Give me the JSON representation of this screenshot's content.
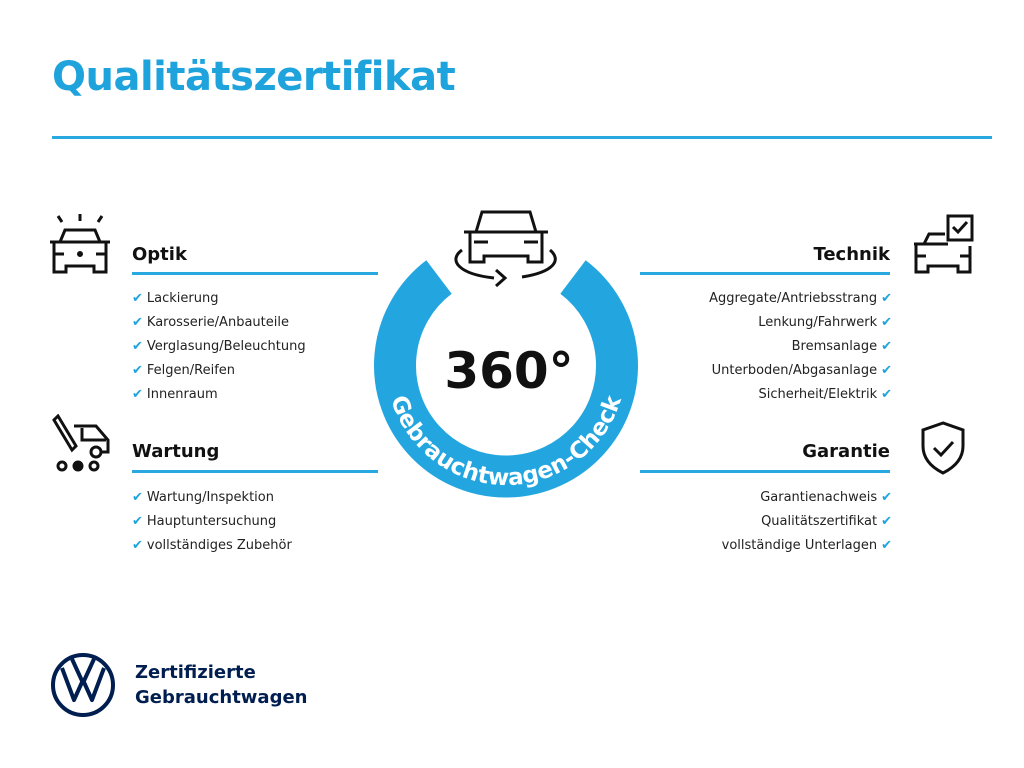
{
  "title": "Qualitätszertifikat",
  "colors": {
    "accent": "#1ea3dc",
    "navy": "#001e50"
  },
  "center": {
    "number": "360°",
    "ring_text": "Gebrauchtwagen-Check",
    "icon": "car-rotate-icon"
  },
  "sections": {
    "optik": {
      "heading": "Optik",
      "icon": "car-lights-icon",
      "items": [
        "Lackierung",
        "Karosserie/Anbauteile",
        "Verglasung/Beleuchtung",
        "Felgen/Reifen",
        "Innenraum"
      ]
    },
    "wartung": {
      "heading": "Wartung",
      "icon": "service-van-icon",
      "items": [
        "Wartung/Inspektion",
        "Hauptuntersuchung",
        "vollständiges Zubehör"
      ]
    },
    "technik": {
      "heading": "Technik",
      "icon": "car-checklist-icon",
      "items": [
        "Aggregate/Antriebsstrang",
        "Lenkung/Fahrwerk",
        "Bremsanlage",
        "Unterboden/Abgasanlage",
        "Sicherheit/Elektrik"
      ]
    },
    "garantie": {
      "heading": "Garantie",
      "icon": "shield-check-icon",
      "items": [
        "Garantienachweis",
        "Qualitätszertifikat",
        "vollständige Unterlagen"
      ]
    }
  },
  "check_mark": "✔",
  "footer": {
    "line1": "Zertifizierte",
    "line2": "Gebrauchtwagen",
    "logo": "VW"
  }
}
